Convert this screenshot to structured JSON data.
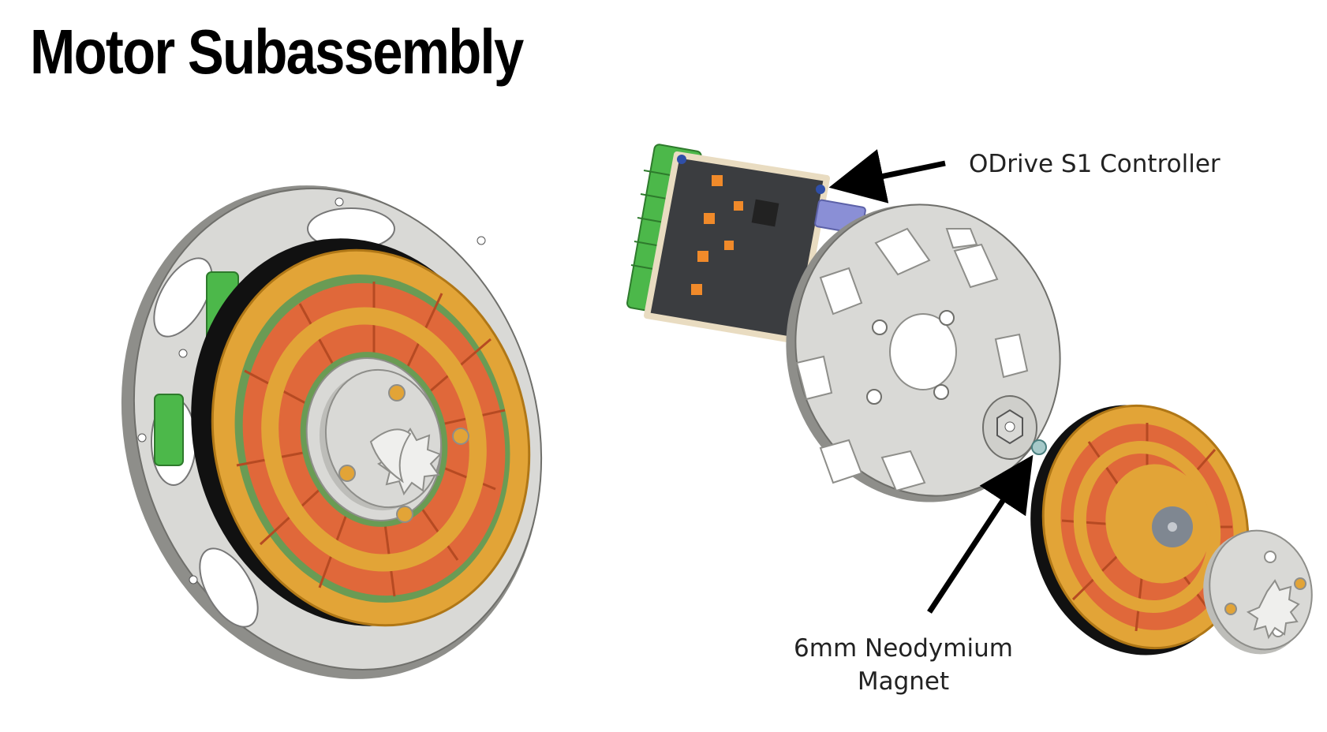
{
  "title": "Motor Subassembly",
  "callouts": {
    "controller": "ODrive S1 Controller",
    "magnet_line1": "6mm Neodymium",
    "magnet_line2": "Magnet"
  },
  "colors": {
    "plate": "#d9d9d6",
    "plate_edge": "#8e8e8a",
    "frame_gold": "#e2a437",
    "coil_orange": "#e0683a",
    "pcb_dark": "#3b3d40",
    "terminal_green": "#4cb84a",
    "arrow": "#000000"
  }
}
